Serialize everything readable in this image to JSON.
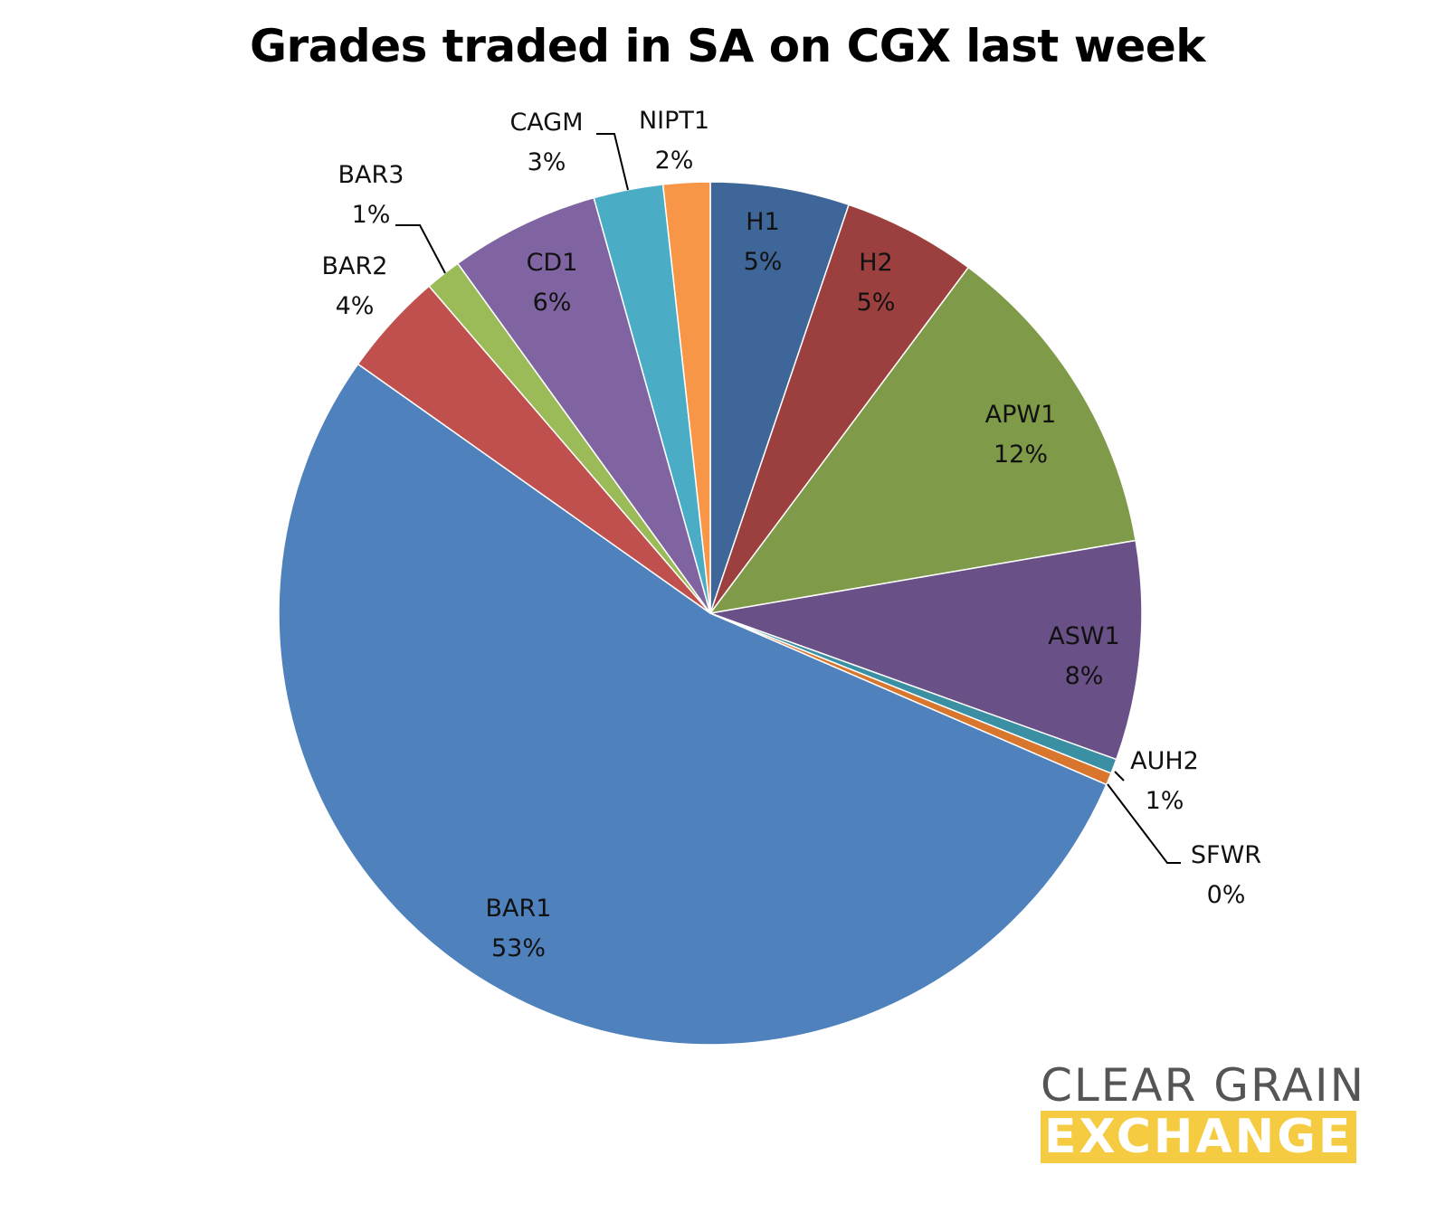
{
  "chart_data": {
    "type": "pie",
    "title": "Grades traded in SA on CGX last week",
    "start_angle_deg": 0,
    "direction": "clockwise",
    "slices": [
      {
        "label": "H1",
        "pct_label": "5%",
        "value": 5.2,
        "color": "#3e6699"
      },
      {
        "label": "H2",
        "pct_label": "5%",
        "value": 5.0,
        "color": "#9b403e"
      },
      {
        "label": "APW1",
        "pct_label": "12%",
        "value": 12.1,
        "color": "#7f9a48"
      },
      {
        "label": "ASW1",
        "pct_label": "8%",
        "value": 8.2,
        "color": "#695086"
      },
      {
        "label": "AUH2",
        "pct_label": "1%",
        "value": 0.55,
        "color": "#3b8fa3"
      },
      {
        "label": "SFWR",
        "pct_label": "0%",
        "value": 0.45,
        "color": "#d8762e"
      },
      {
        "label": "BAR1",
        "pct_label": "53%",
        "value": 53.3,
        "color": "#4f81bc"
      },
      {
        "label": "BAR2",
        "pct_label": "4%",
        "value": 3.9,
        "color": "#c0504d"
      },
      {
        "label": "BAR3",
        "pct_label": "1%",
        "value": 1.35,
        "color": "#9bbb59"
      },
      {
        "label": "CD1",
        "pct_label": "6%",
        "value": 5.6,
        "color": "#8064a2"
      },
      {
        "label": "CAGM",
        "pct_label": "3%",
        "value": 2.6,
        "color": "#4bacc6"
      },
      {
        "label": "NIPT1",
        "pct_label": "2%",
        "value": 1.75,
        "color": "#f79646"
      }
    ]
  },
  "logo": {
    "line1": "CLEAR GRAIN",
    "line2": "EXCHANGE"
  }
}
